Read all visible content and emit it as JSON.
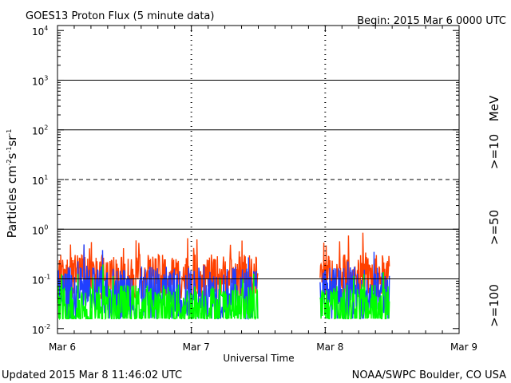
{
  "header": {
    "title": "GOES13 Proton Flux (5 minute data)",
    "begin": "Begin: 2015 Mar 6 0000 UTC"
  },
  "footer": {
    "updated": "Updated 2015 Mar  8 11:46:02 UTC",
    "credit": "NOAA/SWPC Boulder, CO USA"
  },
  "chart_data": {
    "type": "line",
    "xlabel": "Universal Time",
    "ylabel": {
      "base": "Particles cm",
      "e1": "-2",
      "m1": "s",
      "e2": "-1",
      "m2": "sr",
      "e3": "-1"
    },
    "x_ticks": [
      "Mar 6",
      "Mar 7",
      "Mar 8",
      "Mar 9"
    ],
    "x_range_days": [
      0,
      3
    ],
    "y_scale": "log",
    "y_ticks": [
      {
        "base": "10",
        "exp": "-2"
      },
      {
        "base": "10",
        "exp": "-1"
      },
      {
        "base": "10",
        "exp": "0"
      },
      {
        "base": "10",
        "exp": "1"
      },
      {
        "base": "10",
        "exp": "2"
      },
      {
        "base": "10",
        "exp": "3"
      },
      {
        "base": "10",
        "exp": "4"
      }
    ],
    "y_range_log10": [
      -2.1,
      4.1
    ],
    "data_gap_days": [
      1.5,
      1.96
    ],
    "data_end_day": 2.48,
    "reference_lines": [
      {
        "log10": -1,
        "style": "solid"
      },
      {
        "log10": 0,
        "style": "solid"
      },
      {
        "log10": 1,
        "style": "dashed"
      },
      {
        "log10": 2,
        "style": "solid"
      },
      {
        "log10": 3,
        "style": "solid"
      }
    ],
    "legend_unit": "MeV",
    "series": [
      {
        "name": ">=10",
        "color": "#ff4000",
        "base": 0.11,
        "spread": 0.45,
        "values": []
      },
      {
        "name": ">=50",
        "color": "#2040ff",
        "base": 0.05,
        "spread": 0.55,
        "values": []
      },
      {
        "name": ">=100",
        "color": "#00ff00",
        "base": 0.025,
        "spread": 0.5,
        "values": []
      }
    ]
  }
}
